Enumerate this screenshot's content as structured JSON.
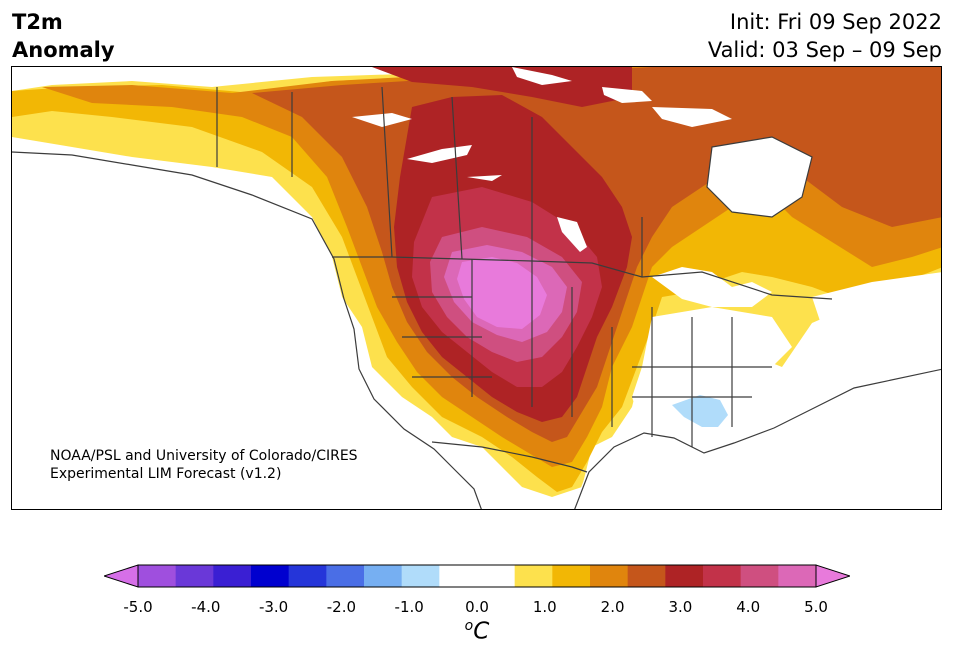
{
  "header": {
    "title_line1": "T2m",
    "title_line2": "Anomaly",
    "init": "Init: Fri 09 Sep 2022",
    "valid": "Valid: 03 Sep – 09 Sep"
  },
  "map": {
    "credit_line1": "NOAA/PSL and University of Colorado/CIRES",
    "credit_line2": "Experimental LIM Forecast (v1.2)"
  },
  "colorbar": {
    "colors": [
      "#d66fe8",
      "#9f4fde",
      "#6a38d8",
      "#3a1fd3",
      "#0000cf",
      "#2535d9",
      "#4a6ee6",
      "#76aff2",
      "#b0dcfa",
      "#ffffff",
      "#ffffff",
      "#fde14d",
      "#f2b705",
      "#e0850d",
      "#c5561b",
      "#ae2325",
      "#c23249",
      "#cf4f80",
      "#dc68b7",
      "#e87adb"
    ],
    "tick_labels": [
      "-5.0",
      "-4.0",
      "-3.0",
      "-2.0",
      "-1.0",
      "0.0",
      "1.0",
      "2.0",
      "3.0",
      "4.0",
      "5.0"
    ],
    "unit_base": "o",
    "unit_letter": "C"
  }
}
